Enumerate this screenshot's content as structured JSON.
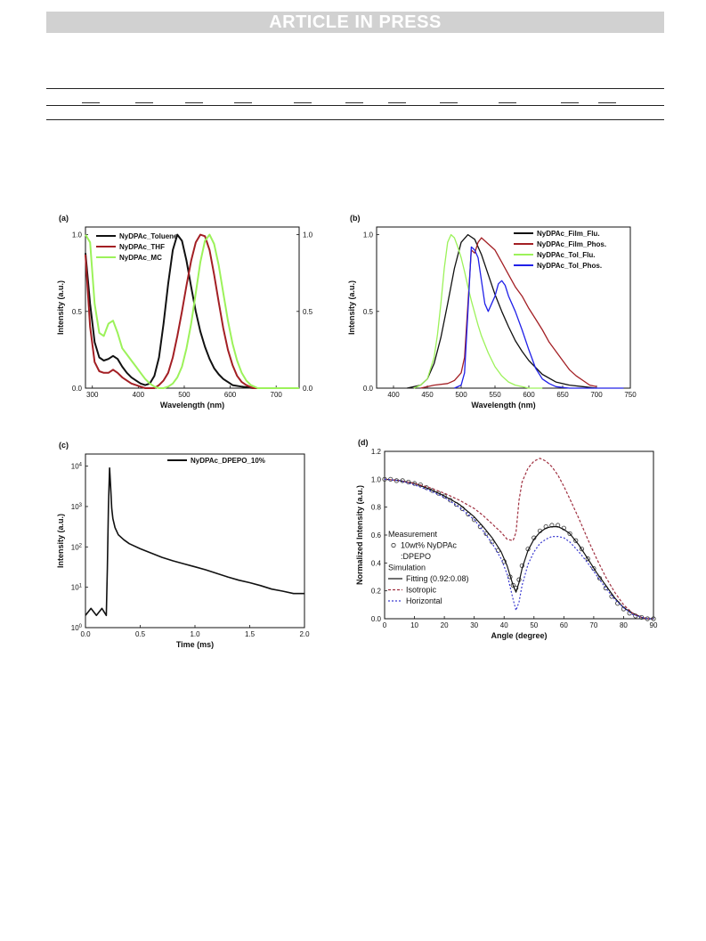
{
  "header": {
    "banner": "ARTICLE IN PRESS"
  },
  "colors": {
    "black": "#111111",
    "darkred": "#a31f24",
    "lime": "#9cf25a",
    "blue": "#2020e8",
    "mred": "#a03040",
    "mblue": "#3a3ad0",
    "banner": "#d1d1d1"
  },
  "chart_data": [
    {
      "id": "a",
      "panel_label": "(a)",
      "type": "line",
      "xlabel": "Wavelength (nm)",
      "ylabel": "Intensity (a.u.)",
      "xlim": [
        285,
        750
      ],
      "ylim": [
        0,
        1.05
      ],
      "x_ticks": [
        "300",
        "400",
        "500",
        "600",
        "700"
      ],
      "y_ticks": [
        "0.0",
        "0.5",
        "1.0"
      ],
      "y2_ticks": [
        "0.0",
        "0.5",
        "1.0"
      ],
      "legend_position": "top-left",
      "series": [
        {
          "name": "NyDPAc_Toluene",
          "color": "#111111",
          "x": [
            285,
            295,
            305,
            315,
            325,
            335,
            345,
            355,
            365,
            375,
            385,
            395,
            405,
            415,
            425,
            435,
            445,
            455,
            465,
            475,
            485,
            495,
            505,
            515,
            525,
            535,
            545,
            555,
            565,
            575,
            585,
            595,
            605,
            625,
            650,
            700,
            750
          ],
          "y": [
            0.88,
            0.55,
            0.3,
            0.2,
            0.18,
            0.19,
            0.21,
            0.19,
            0.14,
            0.1,
            0.07,
            0.05,
            0.03,
            0.02,
            0.03,
            0.08,
            0.2,
            0.42,
            0.68,
            0.9,
            1.0,
            0.96,
            0.83,
            0.66,
            0.5,
            0.37,
            0.27,
            0.19,
            0.13,
            0.09,
            0.06,
            0.04,
            0.02,
            0.01,
            0.0,
            0.0,
            0.0
          ]
        },
        {
          "name": "NyDPAc_THF",
          "color": "#a31f24",
          "x": [
            285,
            295,
            305,
            315,
            325,
            335,
            345,
            355,
            365,
            375,
            385,
            395,
            405,
            415,
            425,
            435,
            445,
            455,
            465,
            475,
            485,
            495,
            505,
            515,
            525,
            535,
            545,
            555,
            565,
            575,
            585,
            595,
            605,
            615,
            625,
            635,
            650,
            700,
            750
          ],
          "y": [
            0.87,
            0.4,
            0.17,
            0.11,
            0.1,
            0.1,
            0.12,
            0.1,
            0.07,
            0.05,
            0.03,
            0.02,
            0.01,
            0.0,
            0.0,
            0.0,
            0.02,
            0.05,
            0.1,
            0.2,
            0.34,
            0.5,
            0.67,
            0.83,
            0.95,
            1.0,
            0.99,
            0.9,
            0.74,
            0.56,
            0.39,
            0.25,
            0.15,
            0.08,
            0.04,
            0.02,
            0.0,
            0.0,
            0.0
          ]
        },
        {
          "name": "NyDPAc_MC",
          "color": "#9cf25a",
          "x": [
            285,
            295,
            305,
            315,
            325,
            335,
            345,
            355,
            365,
            375,
            385,
            395,
            405,
            415,
            425,
            435,
            445,
            455,
            465,
            475,
            485,
            495,
            505,
            515,
            525,
            535,
            545,
            555,
            565,
            575,
            585,
            595,
            605,
            615,
            625,
            635,
            645,
            660,
            700,
            750
          ],
          "y": [
            1.0,
            0.95,
            0.55,
            0.36,
            0.34,
            0.42,
            0.44,
            0.36,
            0.26,
            0.22,
            0.18,
            0.14,
            0.1,
            0.06,
            0.03,
            0.01,
            0.0,
            0.0,
            0.01,
            0.03,
            0.07,
            0.14,
            0.26,
            0.42,
            0.62,
            0.82,
            0.96,
            1.0,
            0.94,
            0.8,
            0.62,
            0.44,
            0.29,
            0.18,
            0.1,
            0.05,
            0.02,
            0.0,
            0.0,
            0.0
          ]
        }
      ]
    },
    {
      "id": "b",
      "panel_label": "(b)",
      "type": "line",
      "xlabel": "Wavelength (nm)",
      "ylabel": "Intensity (a.u.)",
      "xlim": [
        375,
        750
      ],
      "ylim": [
        0,
        1.05
      ],
      "x_ticks": [
        "400",
        "450",
        "500",
        "550",
        "600",
        "650",
        "700",
        "750"
      ],
      "y_ticks": [
        "0.0",
        "0.5",
        "1.0"
      ],
      "legend_position": "top-right",
      "series": [
        {
          "name": "NyDPAc_Film_Flu.",
          "color": "#111111",
          "x": [
            420,
            440,
            450,
            460,
            470,
            480,
            490,
            500,
            510,
            520,
            530,
            540,
            550,
            560,
            570,
            580,
            590,
            600,
            620,
            640,
            660,
            680,
            700
          ],
          "y": [
            0.0,
            0.02,
            0.06,
            0.16,
            0.33,
            0.55,
            0.78,
            0.95,
            1.0,
            0.97,
            0.87,
            0.74,
            0.61,
            0.5,
            0.4,
            0.31,
            0.24,
            0.18,
            0.09,
            0.04,
            0.02,
            0.01,
            0.0
          ]
        },
        {
          "name": "NyDPAc_Film_Phos.",
          "color": "#a31f24",
          "x": [
            440,
            460,
            480,
            490,
            500,
            505,
            510,
            515,
            520,
            525,
            530,
            540,
            550,
            560,
            570,
            580,
            590,
            600,
            610,
            620,
            630,
            640,
            650,
            660,
            670,
            680,
            690,
            700
          ],
          "y": [
            0.0,
            0.02,
            0.03,
            0.05,
            0.1,
            0.2,
            0.55,
            0.9,
            0.88,
            0.95,
            0.98,
            0.94,
            0.9,
            0.82,
            0.74,
            0.66,
            0.6,
            0.52,
            0.45,
            0.38,
            0.3,
            0.24,
            0.18,
            0.12,
            0.08,
            0.05,
            0.02,
            0.01
          ]
        },
        {
          "name": "NyDPAc_Tol_Flu.",
          "color": "#9cf25a",
          "x": [
            430,
            440,
            450,
            460,
            465,
            470,
            475,
            480,
            485,
            490,
            495,
            500,
            505,
            510,
            515,
            520,
            525,
            530,
            540,
            550,
            560,
            570,
            580,
            600,
            620
          ],
          "y": [
            0.0,
            0.02,
            0.06,
            0.2,
            0.35,
            0.55,
            0.78,
            0.95,
            1.0,
            0.98,
            0.92,
            0.85,
            0.76,
            0.66,
            0.57,
            0.49,
            0.41,
            0.34,
            0.23,
            0.14,
            0.08,
            0.04,
            0.02,
            0.0,
            0.0
          ]
        },
        {
          "name": "NyDPAc_Tol_Phos.",
          "color": "#2020e8",
          "x": [
            490,
            500,
            505,
            510,
            515,
            520,
            525,
            530,
            535,
            540,
            545,
            550,
            555,
            560,
            565,
            570,
            575,
            580,
            590,
            600,
            610,
            620,
            630,
            640,
            660,
            680,
            700,
            720,
            740
          ],
          "y": [
            0.0,
            0.02,
            0.1,
            0.5,
            0.92,
            0.9,
            0.85,
            0.7,
            0.55,
            0.5,
            0.55,
            0.6,
            0.68,
            0.7,
            0.67,
            0.6,
            0.55,
            0.5,
            0.38,
            0.25,
            0.13,
            0.06,
            0.03,
            0.01,
            0.0,
            0.0,
            0.0,
            0.0,
            0.0
          ]
        }
      ]
    },
    {
      "id": "c",
      "panel_label": "(c)",
      "type": "line",
      "xlabel": "Time (ms)",
      "ylabel": "Intensity (a.u.)",
      "xlim": [
        0,
        2.0
      ],
      "ylim": [
        1,
        20000
      ],
      "y_scale": "log",
      "x_ticks": [
        "0.0",
        "0.5",
        "1.0",
        "1.5",
        "2.0"
      ],
      "y_ticks": [
        "10^0",
        "10^1",
        "10^2",
        "10^3",
        "10^4"
      ],
      "legend_position": "top-right",
      "series": [
        {
          "name": "NyDPAc_DPEPO_10%",
          "color": "#111111",
          "x": [
            0.0,
            0.05,
            0.1,
            0.15,
            0.19,
            0.2,
            0.21,
            0.22,
            0.23,
            0.24,
            0.25,
            0.27,
            0.3,
            0.35,
            0.4,
            0.5,
            0.6,
            0.7,
            0.8,
            0.9,
            1.0,
            1.1,
            1.2,
            1.3,
            1.4,
            1.5,
            1.6,
            1.7,
            1.8,
            1.9,
            2.0
          ],
          "y": [
            2,
            3,
            2,
            3,
            2,
            30,
            1000,
            9000,
            3000,
            900,
            500,
            300,
            200,
            150,
            120,
            90,
            70,
            55,
            45,
            38,
            32,
            27,
            22,
            18,
            15,
            13,
            11,
            9,
            8,
            7,
            7
          ]
        }
      ]
    },
    {
      "id": "d",
      "panel_label": "(d)",
      "type": "line",
      "xlabel": "Angle (degree)",
      "ylabel": "Normalized Intensity (a.u.)",
      "xlim": [
        0,
        90
      ],
      "ylim": [
        0,
        1.2
      ],
      "x_ticks": [
        "0",
        "10",
        "20",
        "30",
        "40",
        "50",
        "60",
        "70",
        "80",
        "90"
      ],
      "y_ticks": [
        "0.0",
        "0.2",
        "0.4",
        "0.6",
        "0.8",
        "1.0",
        "1.2"
      ],
      "legend": [
        "Measurement",
        "10wt% NyDPAc",
        ":DPEPO",
        "Simulation",
        "Fitting (0.92:0.08)",
        "Isotropic",
        "Horizontal"
      ],
      "legend_position": "bottom-left",
      "series": [
        {
          "name": "10wt% NyDPAc :DPEPO",
          "style": "markers",
          "color": "#333333",
          "x": [
            0,
            2,
            4,
            6,
            8,
            10,
            12,
            14,
            16,
            18,
            20,
            22,
            24,
            26,
            28,
            30,
            32,
            34,
            36,
            38,
            40,
            42,
            43,
            44,
            45,
            46,
            48,
            50,
            52,
            54,
            56,
            58,
            60,
            62,
            64,
            66,
            68,
            70,
            72,
            74,
            76,
            78,
            80,
            82,
            84,
            86,
            88,
            90
          ],
          "y": [
            1.0,
            1.0,
            0.99,
            0.99,
            0.98,
            0.97,
            0.96,
            0.94,
            0.92,
            0.9,
            0.88,
            0.85,
            0.82,
            0.79,
            0.75,
            0.71,
            0.66,
            0.61,
            0.55,
            0.49,
            0.41,
            0.3,
            0.24,
            0.22,
            0.28,
            0.38,
            0.5,
            0.58,
            0.63,
            0.66,
            0.67,
            0.67,
            0.65,
            0.61,
            0.56,
            0.5,
            0.43,
            0.36,
            0.29,
            0.22,
            0.16,
            0.11,
            0.07,
            0.04,
            0.02,
            0.01,
            0.0,
            0.0
          ]
        },
        {
          "name": "Fitting (0.92:0.08)",
          "style": "solid",
          "color": "#111111",
          "x": [
            0,
            5,
            10,
            15,
            20,
            25,
            30,
            33,
            36,
            39,
            41,
            43,
            44,
            45,
            46,
            48,
            50,
            52,
            54,
            56,
            58,
            60,
            62,
            65,
            68,
            71,
            74,
            77,
            80,
            83,
            86,
            88,
            90
          ],
          "y": [
            1.0,
            0.99,
            0.97,
            0.93,
            0.88,
            0.82,
            0.73,
            0.66,
            0.58,
            0.48,
            0.38,
            0.24,
            0.19,
            0.26,
            0.36,
            0.49,
            0.57,
            0.62,
            0.65,
            0.66,
            0.66,
            0.64,
            0.61,
            0.53,
            0.43,
            0.33,
            0.24,
            0.15,
            0.08,
            0.04,
            0.01,
            0.0,
            0.0
          ]
        },
        {
          "name": "Isotropic",
          "style": "dashed",
          "color": "#a03040",
          "x": [
            0,
            5,
            10,
            15,
            20,
            25,
            30,
            33,
            36,
            39,
            41,
            43,
            44,
            45,
            46,
            48,
            50,
            52,
            54,
            56,
            58,
            60,
            62,
            65,
            68,
            71,
            74,
            77,
            80,
            83,
            86,
            88,
            90
          ],
          "y": [
            1.0,
            0.99,
            0.97,
            0.94,
            0.9,
            0.85,
            0.79,
            0.74,
            0.68,
            0.62,
            0.57,
            0.56,
            0.62,
            0.85,
            0.98,
            1.08,
            1.13,
            1.15,
            1.13,
            1.09,
            1.03,
            0.95,
            0.86,
            0.72,
            0.57,
            0.43,
            0.3,
            0.19,
            0.1,
            0.04,
            0.01,
            0.0,
            0.0
          ]
        },
        {
          "name": "Horizontal",
          "style": "dotted",
          "color": "#3a3ad0",
          "x": [
            0,
            5,
            10,
            15,
            20,
            25,
            30,
            33,
            36,
            39,
            41,
            43,
            44,
            45,
            46,
            48,
            50,
            52,
            54,
            56,
            58,
            60,
            62,
            65,
            68,
            71,
            74,
            77,
            80,
            83,
            86,
            88,
            90
          ],
          "y": [
            1.0,
            0.99,
            0.96,
            0.92,
            0.87,
            0.8,
            0.71,
            0.63,
            0.54,
            0.43,
            0.32,
            0.14,
            0.06,
            0.12,
            0.24,
            0.39,
            0.48,
            0.54,
            0.57,
            0.59,
            0.59,
            0.58,
            0.55,
            0.48,
            0.4,
            0.31,
            0.22,
            0.14,
            0.08,
            0.03,
            0.01,
            0.0,
            0.0
          ]
        }
      ]
    }
  ]
}
